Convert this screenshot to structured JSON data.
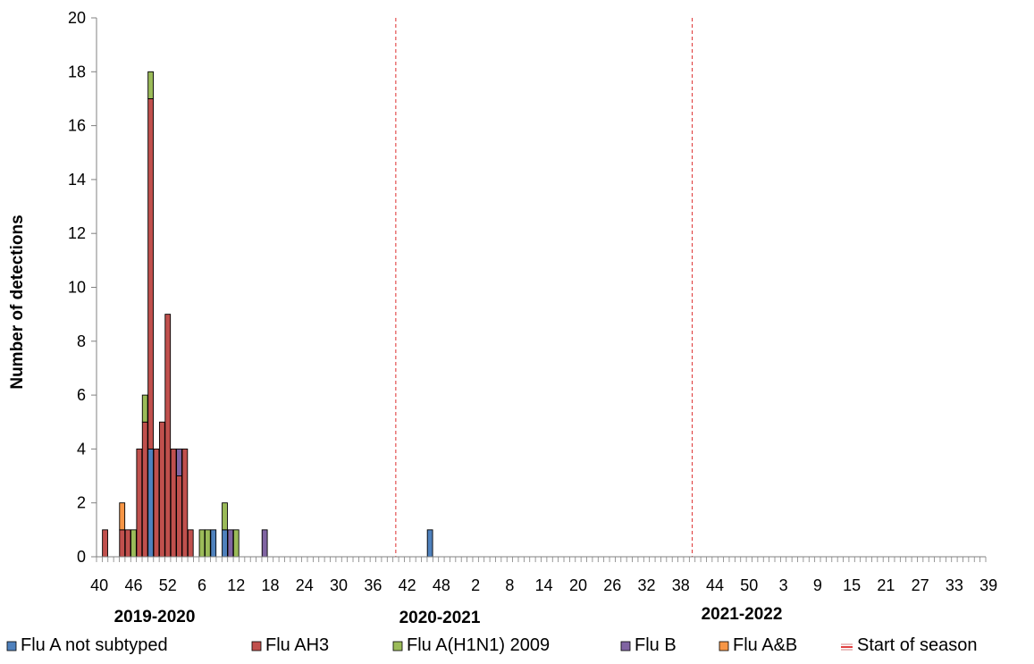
{
  "chart_data": {
    "type": "bar",
    "stacked": true,
    "ylabel": "Number of detections",
    "xlabel": "",
    "ylim": [
      0,
      20
    ],
    "yticks": [
      0,
      2,
      4,
      6,
      8,
      10,
      12,
      14,
      16,
      18,
      20
    ],
    "grid": false,
    "legend_position": "bottom",
    "weeks_per_season": 52,
    "season_start_week": 40,
    "seasons": [
      "2019-2020",
      "2020-2021",
      "2021-2022"
    ],
    "x_tick_labels": [
      "40",
      "46",
      "52",
      "6",
      "12",
      "18",
      "24",
      "30",
      "36",
      "42",
      "48",
      "2",
      "8",
      "14",
      "20",
      "26",
      "32",
      "38",
      "44",
      "50",
      "3",
      "9",
      "15",
      "21",
      "27",
      "33",
      "39"
    ],
    "season_start_markers": [
      52,
      104
    ],
    "series": [
      {
        "name": "Flu A not subtyped",
        "color": "#4f81bd",
        "points": [
          {
            "x": 9,
            "y": 4
          },
          {
            "x": 20,
            "y": 1
          },
          {
            "x": 22,
            "y": 1
          },
          {
            "x": 58,
            "y": 1
          }
        ]
      },
      {
        "name": "Flu AH3",
        "color": "#c0504d",
        "points": [
          {
            "x": 1,
            "y": 1
          },
          {
            "x": 4,
            "y": 1
          },
          {
            "x": 5,
            "y": 1
          },
          {
            "x": 7,
            "y": 4
          },
          {
            "x": 8,
            "y": 5
          },
          {
            "x": 9,
            "y": 13
          },
          {
            "x": 10,
            "y": 4
          },
          {
            "x": 11,
            "y": 5
          },
          {
            "x": 12,
            "y": 9
          },
          {
            "x": 13,
            "y": 4
          },
          {
            "x": 14,
            "y": 3
          },
          {
            "x": 15,
            "y": 4
          },
          {
            "x": 16,
            "y": 1
          }
        ]
      },
      {
        "name": "Flu A(H1N1) 2009",
        "color": "#9bbb59",
        "points": [
          {
            "x": 6,
            "y": 1
          },
          {
            "x": 8,
            "y": 1
          },
          {
            "x": 9,
            "y": 1
          },
          {
            "x": 18,
            "y": 1
          },
          {
            "x": 19,
            "y": 1
          },
          {
            "x": 22,
            "y": 1
          },
          {
            "x": 24,
            "y": 1
          }
        ]
      },
      {
        "name": "Flu B",
        "color": "#8064a2",
        "points": [
          {
            "x": 14,
            "y": 1
          },
          {
            "x": 23,
            "y": 1
          },
          {
            "x": 29,
            "y": 1
          }
        ]
      },
      {
        "name": "Flu A&B",
        "color": "#f79646",
        "points": [
          {
            "x": 4,
            "y": 1
          }
        ]
      }
    ],
    "marker_series": {
      "name": "Start of season",
      "color": "#e04040",
      "style": "dashed"
    }
  }
}
